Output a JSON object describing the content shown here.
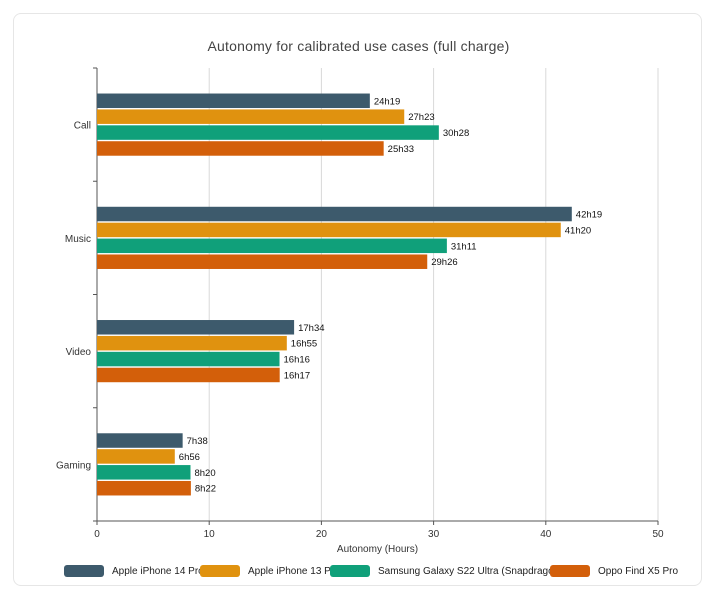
{
  "chart_data": {
    "type": "bar",
    "orientation": "horizontal",
    "title": "Autonomy for calibrated use cases (full charge)",
    "xlabel": "Autonomy (Hours)",
    "ylabel": "",
    "xlim": [
      0,
      50
    ],
    "xticks": [
      0,
      10,
      20,
      30,
      40,
      50
    ],
    "grid": true,
    "legend_position": "bottom",
    "categories": [
      "Call",
      "Music",
      "Video",
      "Gaming"
    ],
    "series": [
      {
        "name": "Apple iPhone 14 Pro",
        "color": "#3d5a6c",
        "values": [
          24.317,
          42.317,
          17.567,
          7.633
        ],
        "labels": [
          "24h19",
          "42h19",
          "17h34",
          "7h38"
        ]
      },
      {
        "name": "Apple iPhone 13 Pro",
        "color": "#e0920f",
        "values": [
          27.383,
          41.333,
          16.917,
          6.933
        ],
        "labels": [
          "27h23",
          "41h20",
          "16h55",
          "6h56"
        ]
      },
      {
        "name": "Samsung Galaxy S22 Ultra (Snapdragon)",
        "color": "#10a07a",
        "values": [
          30.467,
          31.183,
          16.267,
          8.333
        ],
        "labels": [
          "30h28",
          "31h11",
          "16h16",
          "8h20"
        ]
      },
      {
        "name": "Oppo Find X5 Pro",
        "color": "#d35f0a",
        "values": [
          25.55,
          29.433,
          16.283,
          8.367
        ],
        "labels": [
          "25h33",
          "29h26",
          "16h17",
          "8h22"
        ]
      }
    ]
  }
}
